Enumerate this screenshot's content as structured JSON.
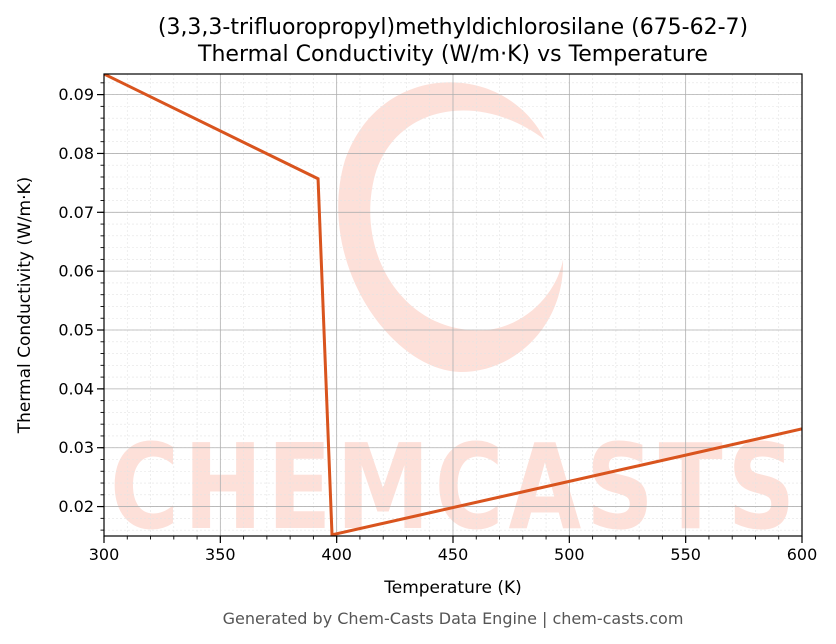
{
  "chart_data": {
    "type": "line",
    "title": "(3,3,3-trifluoropropyl)methyldichlorosilane (675-62-7)",
    "subtitle": "Thermal Conductivity (W/m·K) vs Temperature",
    "xlabel": "Temperature (K)",
    "ylabel": "Thermal Conductivity (W/m·K)",
    "xlim": [
      300,
      600
    ],
    "ylim": [
      0.015,
      0.0935
    ],
    "x_ticks": [
      300,
      350,
      400,
      450,
      500,
      550,
      600
    ],
    "x_tick_labels": [
      "300",
      "350",
      "400",
      "450",
      "500",
      "550",
      "600"
    ],
    "y_ticks": [
      0.02,
      0.03,
      0.04,
      0.05,
      0.06,
      0.07,
      0.08,
      0.09
    ],
    "y_tick_labels": [
      "0.02",
      "0.03",
      "0.04",
      "0.05",
      "0.06",
      "0.07",
      "0.08",
      "0.09"
    ],
    "grid": true,
    "series": [
      {
        "color": "#d9541e",
        "x": [
          300,
          392,
          398,
          600
        ],
        "y": [
          0.0935,
          0.0757,
          0.0152,
          0.0332
        ]
      }
    ]
  },
  "watermark": {
    "text": "CHEMCASTS",
    "color": "#fde0d9"
  },
  "footer": {
    "text": "Generated by Chem-Casts Data Engine | chem-casts.com"
  }
}
